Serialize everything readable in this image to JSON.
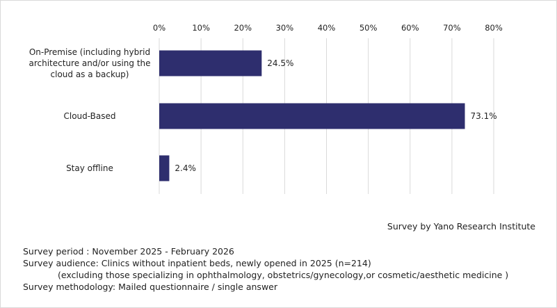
{
  "chart_data": {
    "type": "bar",
    "orientation": "horizontal",
    "categories": [
      [
        "On-Premise (including hybrid",
        "architecture and/or using the",
        "cloud as a backup)"
      ],
      [
        "Cloud-Based"
      ],
      [
        "Stay offline"
      ]
    ],
    "values": [
      24.5,
      73.1,
      2.4
    ],
    "value_labels": [
      "24.5%",
      "73.1%",
      "2.4%"
    ],
    "x_ticks": [
      "0%",
      "10%",
      "20%",
      "30%",
      "40%",
      "50%",
      "60%",
      "70%",
      "80%"
    ],
    "xlim": [
      0,
      80
    ],
    "x_axis_position": "top",
    "grid": "vertical",
    "legend": "none",
    "bar_color": "#2e2e6e",
    "grid_color": "#d9d9d9"
  },
  "credit": "Survey by Yano Research Institute",
  "notes": {
    "period": "Survey period : November 2025 - February 2026",
    "audience": "Survey audience: Clinics without inpatient beds, newly opened in 2025 (n=214)",
    "audience_note": "(excluding those specializing in ophthalmology, obstetrics/gynecology,or cosmetic/aesthetic medicine )",
    "methodology": "Survey methodology: Mailed questionnaire / single answer"
  }
}
